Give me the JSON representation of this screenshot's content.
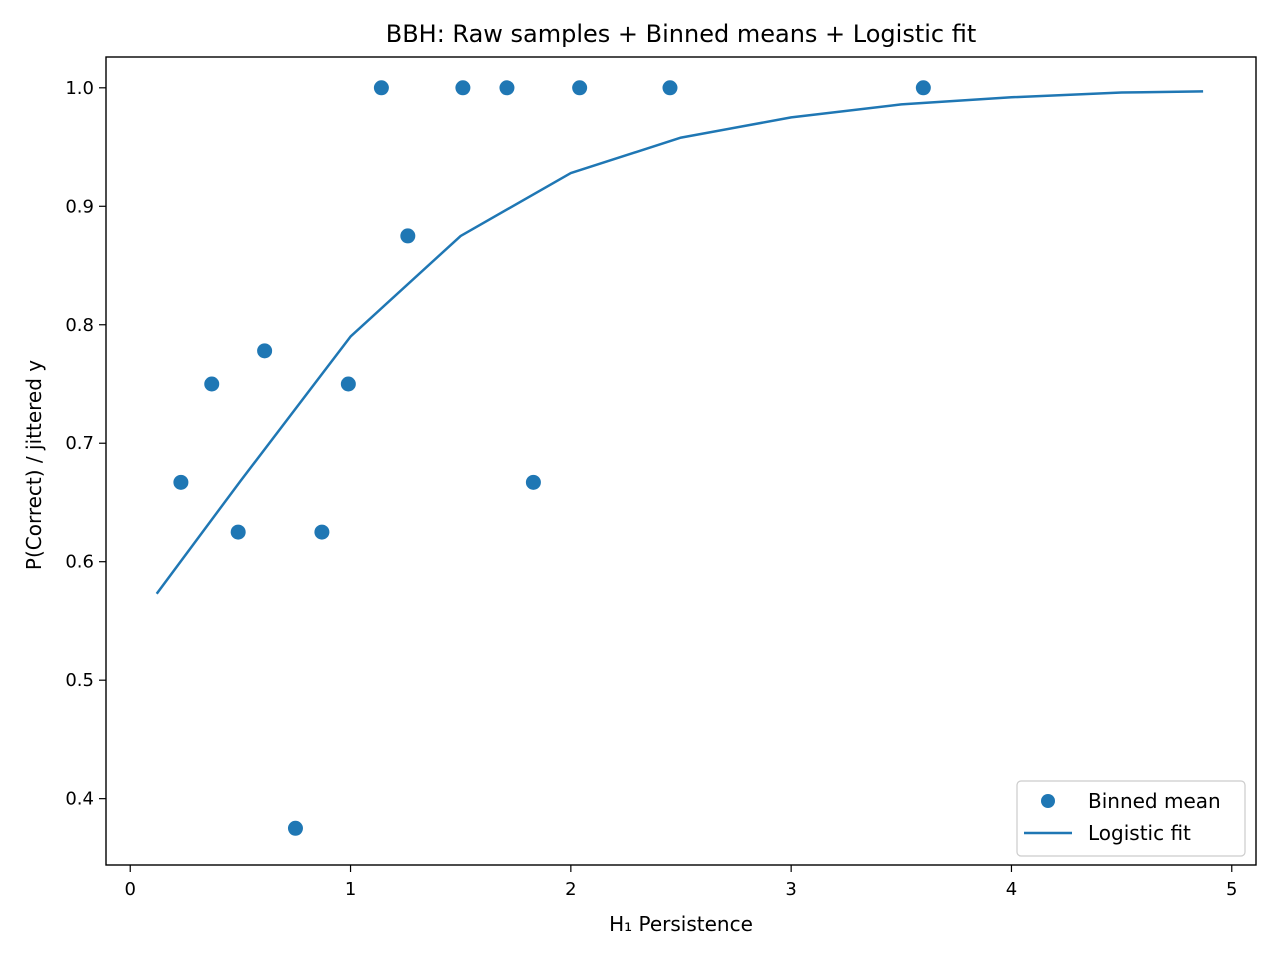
{
  "chart_data": {
    "type": "scatter",
    "title": "BBH: Raw samples + Binned means + Logistic fit",
    "xlabel": "H₁ Persistence",
    "ylabel": "P(Correct) / jittered y",
    "xlim": [
      -0.11,
      5.11
    ],
    "ylim": [
      0.344,
      1.026
    ],
    "xticks": [
      0,
      1,
      2,
      3,
      4,
      5
    ],
    "xtick_labels": [
      "0",
      "1",
      "2",
      "3",
      "4",
      "5"
    ],
    "yticks": [
      0.4,
      0.5,
      0.6,
      0.7,
      0.8,
      0.9,
      1.0
    ],
    "ytick_labels": [
      "0.4",
      "0.5",
      "0.6",
      "0.7",
      "0.8",
      "0.9",
      "1.0"
    ],
    "grid": false,
    "legend_position": "bottom-right",
    "color": "#1f77b4",
    "series": [
      {
        "name": "Binned mean",
        "kind": "scatter",
        "points": [
          {
            "x": 0.23,
            "y": 0.667
          },
          {
            "x": 0.37,
            "y": 0.75
          },
          {
            "x": 0.49,
            "y": 0.625
          },
          {
            "x": 0.61,
            "y": 0.778
          },
          {
            "x": 0.75,
            "y": 0.375
          },
          {
            "x": 0.87,
            "y": 0.625
          },
          {
            "x": 0.99,
            "y": 0.75
          },
          {
            "x": 1.14,
            "y": 1.0
          },
          {
            "x": 1.26,
            "y": 0.875
          },
          {
            "x": 1.51,
            "y": 1.0
          },
          {
            "x": 1.71,
            "y": 1.0
          },
          {
            "x": 1.83,
            "y": 0.667
          },
          {
            "x": 2.04,
            "y": 1.0
          },
          {
            "x": 2.45,
            "y": 1.0
          },
          {
            "x": 3.6,
            "y": 1.0
          }
        ]
      },
      {
        "name": "Logistic fit",
        "kind": "line",
        "points": [
          {
            "x": 0.12,
            "y": 0.573
          },
          {
            "x": 0.5,
            "y": 0.668
          },
          {
            "x": 1.0,
            "y": 0.79
          },
          {
            "x": 1.5,
            "y": 0.875
          },
          {
            "x": 2.0,
            "y": 0.928
          },
          {
            "x": 2.5,
            "y": 0.958
          },
          {
            "x": 3.0,
            "y": 0.975
          },
          {
            "x": 3.5,
            "y": 0.986
          },
          {
            "x": 4.0,
            "y": 0.992
          },
          {
            "x": 4.5,
            "y": 0.996
          },
          {
            "x": 4.87,
            "y": 0.997
          }
        ]
      }
    ]
  }
}
